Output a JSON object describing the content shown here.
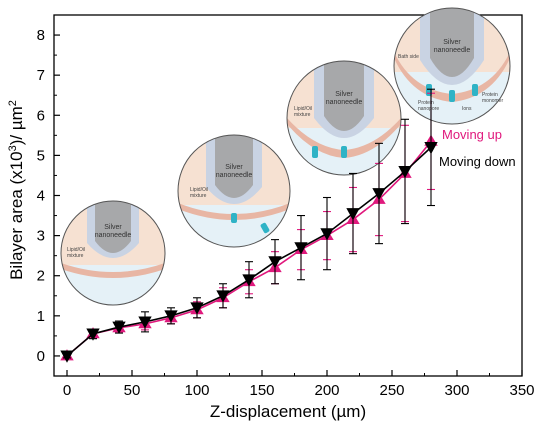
{
  "chart_data": {
    "type": "line",
    "xlabel": "Z-displacement (µm)",
    "ylabel_main": "Bilayer area (x10",
    "ylabel_sup1": "3",
    "ylabel_mid": ")/ µm",
    "ylabel_sup2": "2",
    "xlim": [
      -10,
      350
    ],
    "ylim": [
      -0.5,
      8.5
    ],
    "xticks": [
      0,
      50,
      100,
      150,
      200,
      250,
      300,
      350
    ],
    "yticks": [
      0,
      1,
      2,
      3,
      4,
      5,
      6,
      7,
      8
    ],
    "grid": false,
    "legend_position": "right",
    "series": [
      {
        "name": "Moving up",
        "color": "#e0197d",
        "marker": "triangle-up",
        "x": [
          0,
          20,
          40,
          60,
          80,
          100,
          120,
          140,
          160,
          180,
          200,
          220,
          240,
          260,
          280
        ],
        "y": [
          0.0,
          0.55,
          0.7,
          0.8,
          0.95,
          1.15,
          1.45,
          1.85,
          2.2,
          2.65,
          3.0,
          3.4,
          3.9,
          4.55,
          5.35
        ],
        "err": [
          0.05,
          0.1,
          0.12,
          0.15,
          0.15,
          0.2,
          0.25,
          0.3,
          0.4,
          0.5,
          0.6,
          0.8,
          0.9,
          1.2,
          1.2
        ]
      },
      {
        "name": "Moving down",
        "color": "#000000",
        "marker": "triangle-down",
        "x": [
          0,
          20,
          40,
          60,
          80,
          100,
          120,
          140,
          160,
          180,
          200,
          220,
          240,
          260,
          280
        ],
        "y": [
          0.0,
          0.55,
          0.72,
          0.85,
          1.0,
          1.2,
          1.5,
          1.9,
          2.35,
          2.7,
          3.05,
          3.55,
          4.05,
          4.6,
          5.2
        ],
        "err": [
          0.05,
          0.12,
          0.15,
          0.25,
          0.2,
          0.25,
          0.3,
          0.45,
          0.55,
          0.8,
          0.9,
          1.0,
          1.25,
          1.3,
          1.45
        ]
      }
    ]
  },
  "insets": {
    "needle_label_line1": "Silver",
    "needle_label_line2": "nanoneedle",
    "lipid_label_line1": "Lipid/Oil",
    "lipid_label_line2": "mixture",
    "bath_side": "Bath side",
    "protein_nanopore_line1": "Protein",
    "protein_nanopore_line2": "nanopore",
    "protein_monomer_line1": "Protein",
    "protein_monomer_line2": "monomer",
    "ions": "Ions"
  },
  "colors": {
    "needle": "#a7a8aa",
    "coating": "#c9d3e3",
    "lipid": "#f6e1d2",
    "bath": "#e5f1f7",
    "membrane": "#e8b6a4",
    "protein": "#2fb3c6",
    "arrow": "#8e1f4b"
  }
}
